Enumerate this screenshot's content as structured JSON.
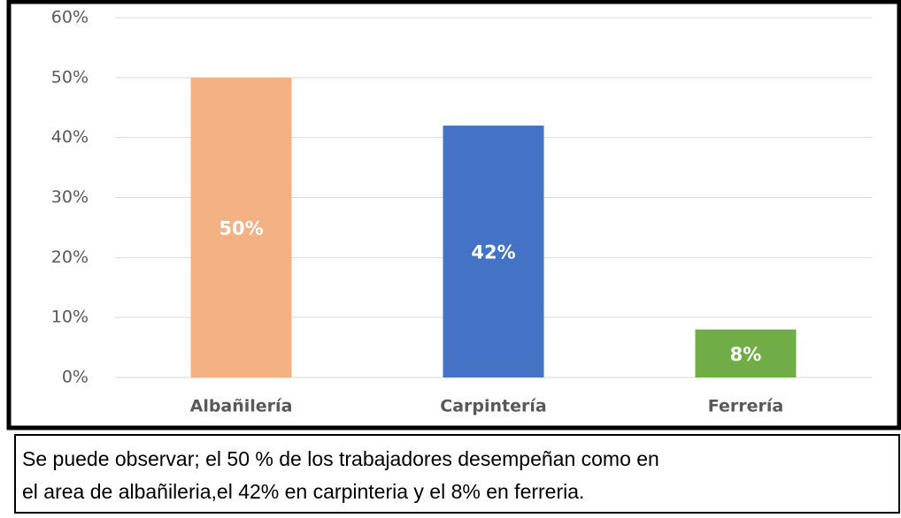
{
  "chart_data": {
    "type": "bar",
    "categories": [
      "Albañilería",
      "Carpintería",
      "Ferrería"
    ],
    "values": [
      50,
      42,
      8
    ],
    "value_labels": [
      "50%",
      "42%",
      "8%"
    ],
    "colors": [
      "#f4b183",
      "#4472c4",
      "#70ad47"
    ],
    "ylim": [
      0,
      60
    ],
    "yticks": [
      {
        "value": 0,
        "label": "0%"
      },
      {
        "value": 10,
        "label": "10%"
      },
      {
        "value": 20,
        "label": "20%"
      },
      {
        "value": 30,
        "label": "30%"
      },
      {
        "value": 40,
        "label": "40%"
      },
      {
        "value": 50,
        "label": "50%"
      },
      {
        "value": 60,
        "label": "60%"
      }
    ],
    "grid": true
  },
  "caption": [
    "Se puede observar; el 50 % de los trabajadores desempeñan como en",
    "el area de albañileria,el 42% en carpinteria y el 8% en ferreria."
  ]
}
